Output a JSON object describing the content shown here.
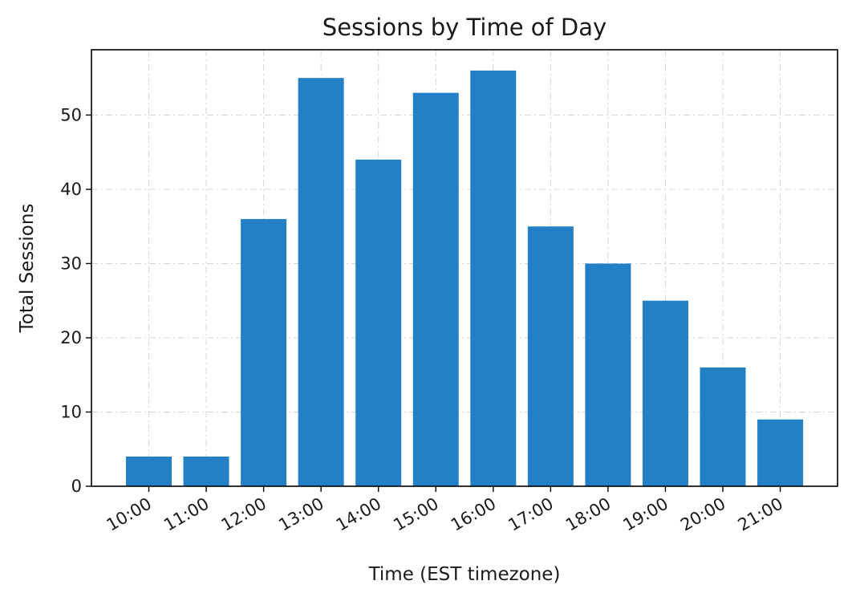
{
  "chart_data": {
    "type": "bar",
    "title": "Sessions by Time of Day",
    "xlabel": "Time (EST timezone)",
    "ylabel": "Total Sessions",
    "categories": [
      "10:00",
      "11:00",
      "12:00",
      "13:00",
      "14:00",
      "15:00",
      "16:00",
      "17:00",
      "18:00",
      "19:00",
      "20:00",
      "21:00"
    ],
    "values": [
      4,
      4,
      36,
      55,
      44,
      53,
      56,
      35,
      30,
      25,
      16,
      9
    ],
    "ylim": [
      0,
      58.8
    ],
    "yticks": [
      0,
      10,
      20,
      30,
      40,
      50
    ],
    "grid": true,
    "bar_color": "#2380c6",
    "grid_color": "#d6d6d6"
  }
}
